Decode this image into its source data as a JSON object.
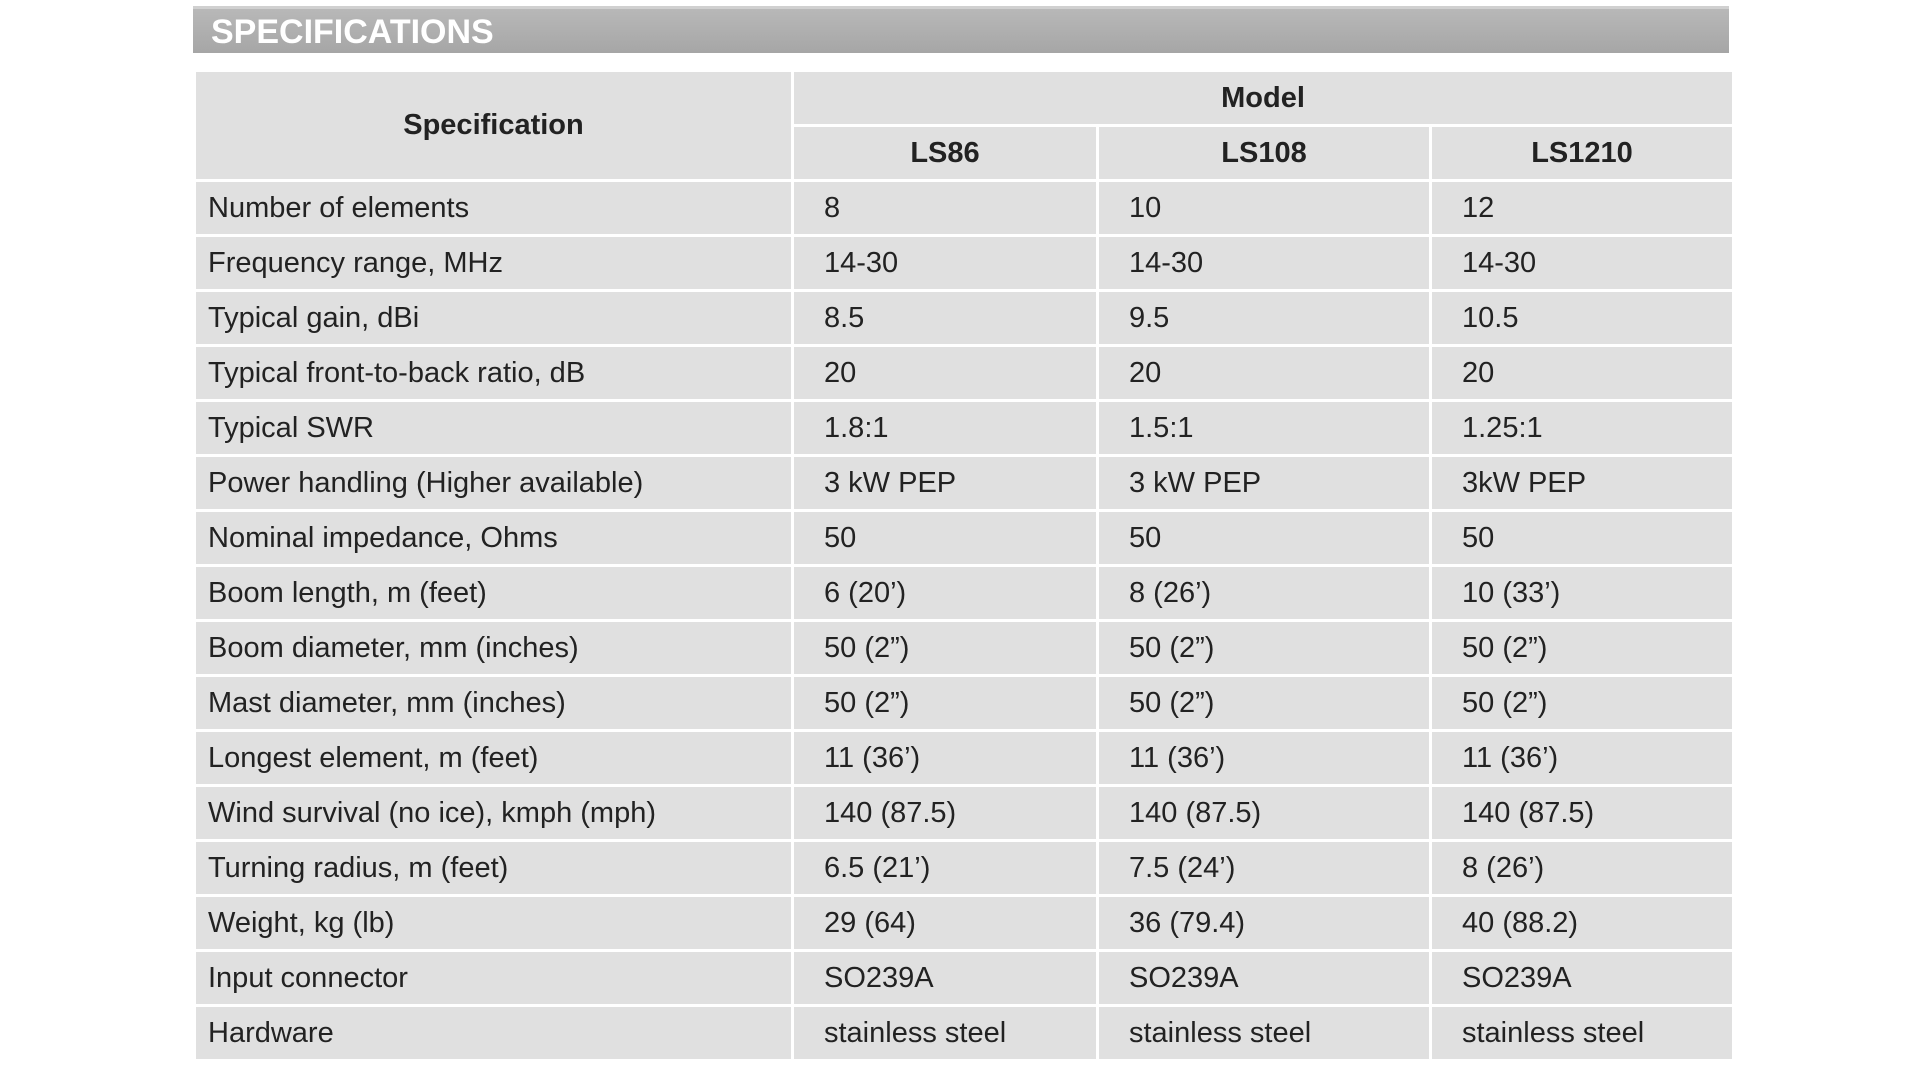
{
  "header": {
    "title": "SPECIFICATIONS"
  },
  "table": {
    "spec_header": "Specification",
    "model_header": "Model",
    "models": [
      "LS86",
      "LS108",
      "LS1210"
    ],
    "rows": [
      [
        "Number of elements",
        "8",
        "10",
        "12"
      ],
      [
        "Frequency range, MHz",
        "14-30",
        "14-30",
        "14-30"
      ],
      [
        "Typical gain, dBi",
        "8.5",
        "9.5",
        "10.5"
      ],
      [
        "Typical front-to-back ratio, dB",
        "20",
        "20",
        "20"
      ],
      [
        "Typical SWR",
        "1.8:1",
        "1.5:1",
        "1.25:1"
      ],
      [
        "Power handling (Higher available)",
        "3 kW PEP",
        "3 kW PEP",
        "3kW PEP"
      ],
      [
        "Nominal impedance, Ohms",
        "50",
        "50",
        "50"
      ],
      [
        "Boom length, m (feet)",
        "6 (20’)",
        "8 (26’)",
        "10 (33’)"
      ],
      [
        "Boom diameter, mm (inches)",
        "50 (2”)",
        "50 (2”)",
        "50 (2”)"
      ],
      [
        "Mast diameter, mm (inches)",
        "50 (2”)",
        "50 (2”)",
        "50 (2”)"
      ],
      [
        "Longest element, m (feet)",
        "11 (36’)",
        "11 (36’)",
        "11 (36’)"
      ],
      [
        "Wind survival (no ice), kmph (mph)",
        "140 (87.5)",
        "140 (87.5)",
        "140 (87.5)"
      ],
      [
        "Turning radius, m (feet)",
        "6.5 (21’)",
        "7.5 (24’)",
        "8 (26’)"
      ],
      [
        "Weight, kg (lb)",
        "29 (64)",
        "36 (79.4)",
        "40 (88.2)"
      ],
      [
        "Input connector",
        "SO239A",
        "SO239A",
        "SO239A"
      ],
      [
        "Hardware",
        "stainless steel",
        "stainless steel",
        "stainless steel"
      ]
    ]
  }
}
